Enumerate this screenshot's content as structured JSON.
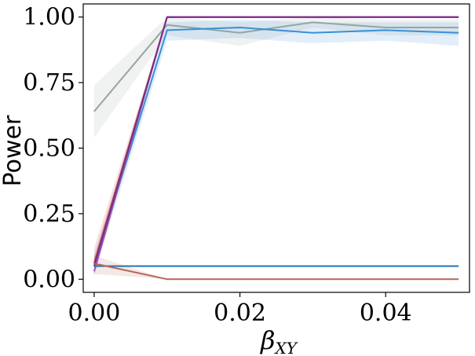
{
  "chart_data": {
    "type": "line",
    "title": "",
    "xlabel": "β",
    "xlabel_sub": "XY",
    "ylabel": "Power",
    "xlim": [
      -0.0015,
      0.0515
    ],
    "ylim": [
      -0.05,
      1.05
    ],
    "xticks": [
      0.0,
      0.02,
      0.04
    ],
    "xtick_labels": [
      "0.00",
      "0.02",
      "0.04"
    ],
    "yticks": [
      0.0,
      0.25,
      0.5,
      0.75,
      1.0
    ],
    "ytick_labels": [
      "0.00",
      "0.25",
      "0.50",
      "0.75",
      "1.00"
    ],
    "grid": false,
    "legend": "none",
    "x": [
      0.0,
      0.01,
      0.02,
      0.03,
      0.04,
      0.05
    ],
    "series": [
      {
        "color": "#95a5a0",
        "values": [
          0.64,
          0.97,
          0.94,
          0.98,
          0.96,
          0.96
        ],
        "lower": [
          0.54,
          0.93,
          0.89,
          0.96,
          0.93,
          0.93
        ],
        "upper": [
          0.74,
          1.0,
          0.98,
          1.0,
          0.99,
          0.99
        ]
      },
      {
        "color": "#3a8fd8",
        "values": [
          0.05,
          0.95,
          0.96,
          0.94,
          0.95,
          0.94
        ],
        "lower": [
          0.02,
          0.91,
          0.92,
          0.9,
          0.91,
          0.89
        ],
        "upper": [
          0.09,
          0.98,
          0.99,
          0.98,
          0.98,
          0.98
        ]
      },
      {
        "color": "#c0392b",
        "values": [
          0.06,
          1.0,
          1.0,
          1.0,
          1.0,
          1.0
        ],
        "lower": [
          0.02,
          1.0,
          1.0,
          1.0,
          1.0,
          1.0
        ],
        "upper": [
          0.12,
          1.0,
          1.0,
          1.0,
          1.0,
          1.0
        ]
      },
      {
        "color": "#9b59b6",
        "values": [
          0.03,
          1.0,
          1.0,
          1.0,
          1.0,
          1.0
        ],
        "lower": [
          0.01,
          1.0,
          1.0,
          1.0,
          1.0,
          1.0
        ],
        "upper": [
          0.06,
          1.0,
          1.0,
          1.0,
          1.0,
          1.0
        ]
      },
      {
        "color": "#7b2d8b",
        "values": [
          0.05,
          1.0,
          1.0,
          1.0,
          1.0,
          1.0
        ],
        "lower": [
          0.02,
          1.0,
          1.0,
          1.0,
          1.0,
          1.0
        ],
        "upper": [
          0.09,
          1.0,
          1.0,
          1.0,
          1.0,
          1.0
        ]
      },
      {
        "color": "#2471b5",
        "values": [
          0.05,
          0.05,
          0.05,
          0.05,
          0.05,
          0.05
        ],
        "lower": [
          0.05,
          0.05,
          0.05,
          0.05,
          0.05,
          0.05
        ],
        "upper": [
          0.05,
          0.05,
          0.05,
          0.05,
          0.05,
          0.05
        ]
      },
      {
        "color": "#b5675a",
        "values": [
          0.06,
          0.0,
          0.0,
          0.0,
          0.0,
          0.0
        ],
        "lower": [
          0.02,
          0.0,
          0.0,
          0.0,
          0.0,
          0.0
        ],
        "upper": [
          0.09,
          0.0,
          0.0,
          0.0,
          0.0,
          0.0
        ]
      }
    ]
  }
}
